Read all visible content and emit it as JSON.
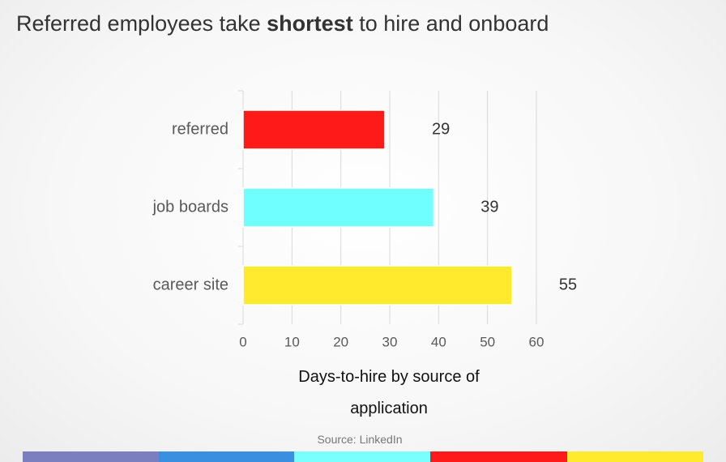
{
  "chart_data": {
    "type": "barh",
    "title_parts": [
      "Referred employees take ",
      "shortest",
      " to hire and onboard"
    ],
    "categories": [
      "referred",
      "job boards",
      "career site"
    ],
    "values": [
      29,
      39,
      55
    ],
    "colors": [
      "#ff1a1a",
      "#70ffff",
      "#ffea2e"
    ],
    "xlim": [
      0,
      60
    ],
    "xticks": [
      0,
      10,
      20,
      30,
      40,
      50,
      60
    ],
    "grid": true,
    "xlabel": "Days-to-hire by source of application",
    "source": "Source: LinkedIn"
  }
}
